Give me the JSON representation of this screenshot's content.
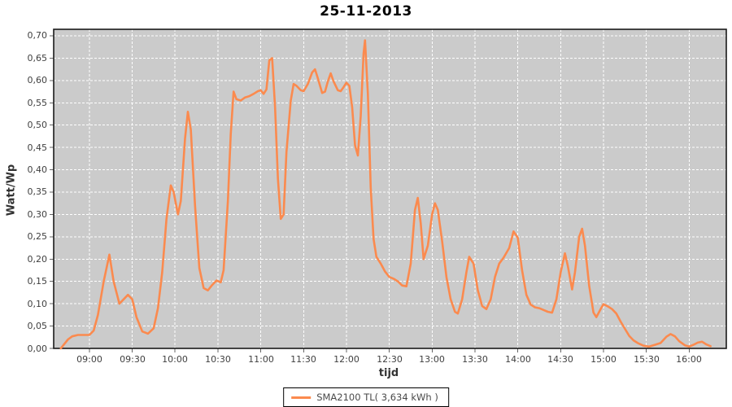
{
  "chart": {
    "title": "25-11-2013",
    "xlabel": "tijd",
    "ylabel": "Watt/Wp"
  },
  "legend": {
    "label": "SMA2100 TL( 3,634 kWh )"
  },
  "colors": {
    "series": "#FB8A4E",
    "plot_background": "#CBCBCB",
    "gridline": "#FFFFFF",
    "plot_border": "#1a1a1a",
    "tick_mark": "#666666",
    "tick_text": "#3F3F3F",
    "legend_border": "#000000",
    "legend_text": "#4A4A4A",
    "page_background": "#FFFFFF"
  },
  "chart_data": {
    "type": "line",
    "title": "25-11-2013",
    "xlabel": "tijd",
    "ylabel": "Watt/Wp",
    "grid": "white dashed gridlines on gray plot background",
    "legend_position": "bottom-center",
    "ylim": [
      0,
      0.7
    ],
    "y_tick_step": 0.05,
    "y_tick_labels": [
      "0,00",
      "0,05",
      "0,10",
      "0,15",
      "0,20",
      "0,25",
      "0,30",
      "0,35",
      "0,40",
      "0,45",
      "0,50",
      "0,55",
      "0,60",
      "0,65",
      "0,70"
    ],
    "x_tick_labels": [
      "09:00",
      "09:30",
      "10:00",
      "10:30",
      "11:00",
      "11:30",
      "12:00",
      "12:30",
      "13:00",
      "13:30",
      "14:00",
      "14:30",
      "15:00",
      "15:30",
      "16:00"
    ],
    "x_domain": [
      "08:35",
      "16:26"
    ],
    "series": [
      {
        "name": "SMA2100 TL( 3,634 kWh )",
        "color": "#FB8A4E",
        "points": [
          [
            "08:40",
            0.0
          ],
          [
            "08:42",
            0.008
          ],
          [
            "08:45",
            0.02
          ],
          [
            "08:48",
            0.027
          ],
          [
            "08:52",
            0.03
          ],
          [
            "08:56",
            0.03
          ],
          [
            "09:00",
            0.03
          ],
          [
            "09:03",
            0.04
          ],
          [
            "09:06",
            0.075
          ],
          [
            "09:10",
            0.15
          ],
          [
            "09:14",
            0.21
          ],
          [
            "09:17",
            0.15
          ],
          [
            "09:21",
            0.1
          ],
          [
            "09:24",
            0.11
          ],
          [
            "09:27",
            0.12
          ],
          [
            "09:30",
            0.11
          ],
          [
            "09:33",
            0.07
          ],
          [
            "09:37",
            0.038
          ],
          [
            "09:41",
            0.033
          ],
          [
            "09:45",
            0.045
          ],
          [
            "09:48",
            0.09
          ],
          [
            "09:51",
            0.17
          ],
          [
            "09:54",
            0.29
          ],
          [
            "09:57",
            0.365
          ],
          [
            "09:59",
            0.35
          ],
          [
            "10:02",
            0.3
          ],
          [
            "10:04",
            0.33
          ],
          [
            "10:07",
            0.47
          ],
          [
            "10:09",
            0.53
          ],
          [
            "10:11",
            0.49
          ],
          [
            "10:14",
            0.32
          ],
          [
            "10:17",
            0.18
          ],
          [
            "10:20",
            0.135
          ],
          [
            "10:23",
            0.13
          ],
          [
            "10:26",
            0.142
          ],
          [
            "10:29",
            0.152
          ],
          [
            "10:32",
            0.148
          ],
          [
            "10:34",
            0.175
          ],
          [
            "10:37",
            0.33
          ],
          [
            "10:39",
            0.48
          ],
          [
            "10:41",
            0.575
          ],
          [
            "10:43",
            0.558
          ],
          [
            "10:46",
            0.555
          ],
          [
            "10:49",
            0.562
          ],
          [
            "10:52",
            0.565
          ],
          [
            "10:55",
            0.57
          ],
          [
            "10:58",
            0.576
          ],
          [
            "11:00",
            0.578
          ],
          [
            "11:02",
            0.57
          ],
          [
            "11:04",
            0.58
          ],
          [
            "11:06",
            0.645
          ],
          [
            "11:08",
            0.65
          ],
          [
            "11:10",
            0.54
          ],
          [
            "11:12",
            0.38
          ],
          [
            "11:14",
            0.29
          ],
          [
            "11:16",
            0.3
          ],
          [
            "11:18",
            0.44
          ],
          [
            "11:21",
            0.555
          ],
          [
            "11:23",
            0.592
          ],
          [
            "11:25",
            0.588
          ],
          [
            "11:28",
            0.578
          ],
          [
            "11:30",
            0.576
          ],
          [
            "11:33",
            0.592
          ],
          [
            "11:36",
            0.618
          ],
          [
            "11:38",
            0.625
          ],
          [
            "11:40",
            0.605
          ],
          [
            "11:43",
            0.572
          ],
          [
            "11:45",
            0.575
          ],
          [
            "11:47",
            0.598
          ],
          [
            "11:49",
            0.616
          ],
          [
            "11:51",
            0.598
          ],
          [
            "11:54",
            0.578
          ],
          [
            "11:56",
            0.576
          ],
          [
            "11:58",
            0.585
          ],
          [
            "12:00",
            0.595
          ],
          [
            "12:02",
            0.588
          ],
          [
            "12:04",
            0.54
          ],
          [
            "12:06",
            0.455
          ],
          [
            "12:08",
            0.432
          ],
          [
            "12:10",
            0.52
          ],
          [
            "12:12",
            0.66
          ],
          [
            "12:13",
            0.69
          ],
          [
            "12:15",
            0.57
          ],
          [
            "12:17",
            0.36
          ],
          [
            "12:19",
            0.245
          ],
          [
            "12:21",
            0.205
          ],
          [
            "12:24",
            0.19
          ],
          [
            "12:27",
            0.172
          ],
          [
            "12:30",
            0.16
          ],
          [
            "12:33",
            0.156
          ],
          [
            "12:36",
            0.15
          ],
          [
            "12:39",
            0.141
          ],
          [
            "12:42",
            0.139
          ],
          [
            "12:45",
            0.19
          ],
          [
            "12:48",
            0.31
          ],
          [
            "12:50",
            0.337
          ],
          [
            "12:52",
            0.28
          ],
          [
            "12:54",
            0.2
          ],
          [
            "12:57",
            0.23
          ],
          [
            "13:00",
            0.3
          ],
          [
            "13:02",
            0.325
          ],
          [
            "13:04",
            0.31
          ],
          [
            "13:07",
            0.24
          ],
          [
            "13:10",
            0.16
          ],
          [
            "13:13",
            0.11
          ],
          [
            "13:16",
            0.082
          ],
          [
            "13:18",
            0.078
          ],
          [
            "13:21",
            0.11
          ],
          [
            "13:24",
            0.17
          ],
          [
            "13:26",
            0.205
          ],
          [
            "13:29",
            0.19
          ],
          [
            "13:32",
            0.13
          ],
          [
            "13:35",
            0.095
          ],
          [
            "13:38",
            0.088
          ],
          [
            "13:41",
            0.11
          ],
          [
            "13:44",
            0.16
          ],
          [
            "13:47",
            0.19
          ],
          [
            "13:50",
            0.203
          ],
          [
            "13:54",
            0.225
          ],
          [
            "13:57",
            0.262
          ],
          [
            "14:00",
            0.248
          ],
          [
            "14:03",
            0.175
          ],
          [
            "14:06",
            0.12
          ],
          [
            "14:09",
            0.098
          ],
          [
            "14:12",
            0.092
          ],
          [
            "14:15",
            0.09
          ],
          [
            "14:18",
            0.086
          ],
          [
            "14:21",
            0.082
          ],
          [
            "14:24",
            0.08
          ],
          [
            "14:27",
            0.11
          ],
          [
            "14:30",
            0.17
          ],
          [
            "14:33",
            0.213
          ],
          [
            "14:35",
            0.185
          ],
          [
            "14:38",
            0.132
          ],
          [
            "14:40",
            0.17
          ],
          [
            "14:43",
            0.25
          ],
          [
            "14:45",
            0.268
          ],
          [
            "14:47",
            0.23
          ],
          [
            "14:50",
            0.14
          ],
          [
            "14:53",
            0.08
          ],
          [
            "14:55",
            0.07
          ],
          [
            "14:58",
            0.088
          ],
          [
            "15:00",
            0.099
          ],
          [
            "15:03",
            0.094
          ],
          [
            "15:06",
            0.088
          ],
          [
            "15:09",
            0.078
          ],
          [
            "15:12",
            0.06
          ],
          [
            "15:15",
            0.044
          ],
          [
            "15:18",
            0.028
          ],
          [
            "15:21",
            0.018
          ],
          [
            "15:24",
            0.012
          ],
          [
            "15:28",
            0.006
          ],
          [
            "15:32",
            0.004
          ],
          [
            "15:36",
            0.008
          ],
          [
            "15:40",
            0.012
          ],
          [
            "15:44",
            0.026
          ],
          [
            "15:47",
            0.032
          ],
          [
            "15:50",
            0.027
          ],
          [
            "15:53",
            0.016
          ],
          [
            "15:57",
            0.007
          ],
          [
            "16:00",
            0.004
          ],
          [
            "16:03",
            0.008
          ],
          [
            "16:06",
            0.013
          ],
          [
            "16:09",
            0.015
          ],
          [
            "16:12",
            0.009
          ],
          [
            "16:15",
            0.005
          ]
        ]
      }
    ]
  }
}
